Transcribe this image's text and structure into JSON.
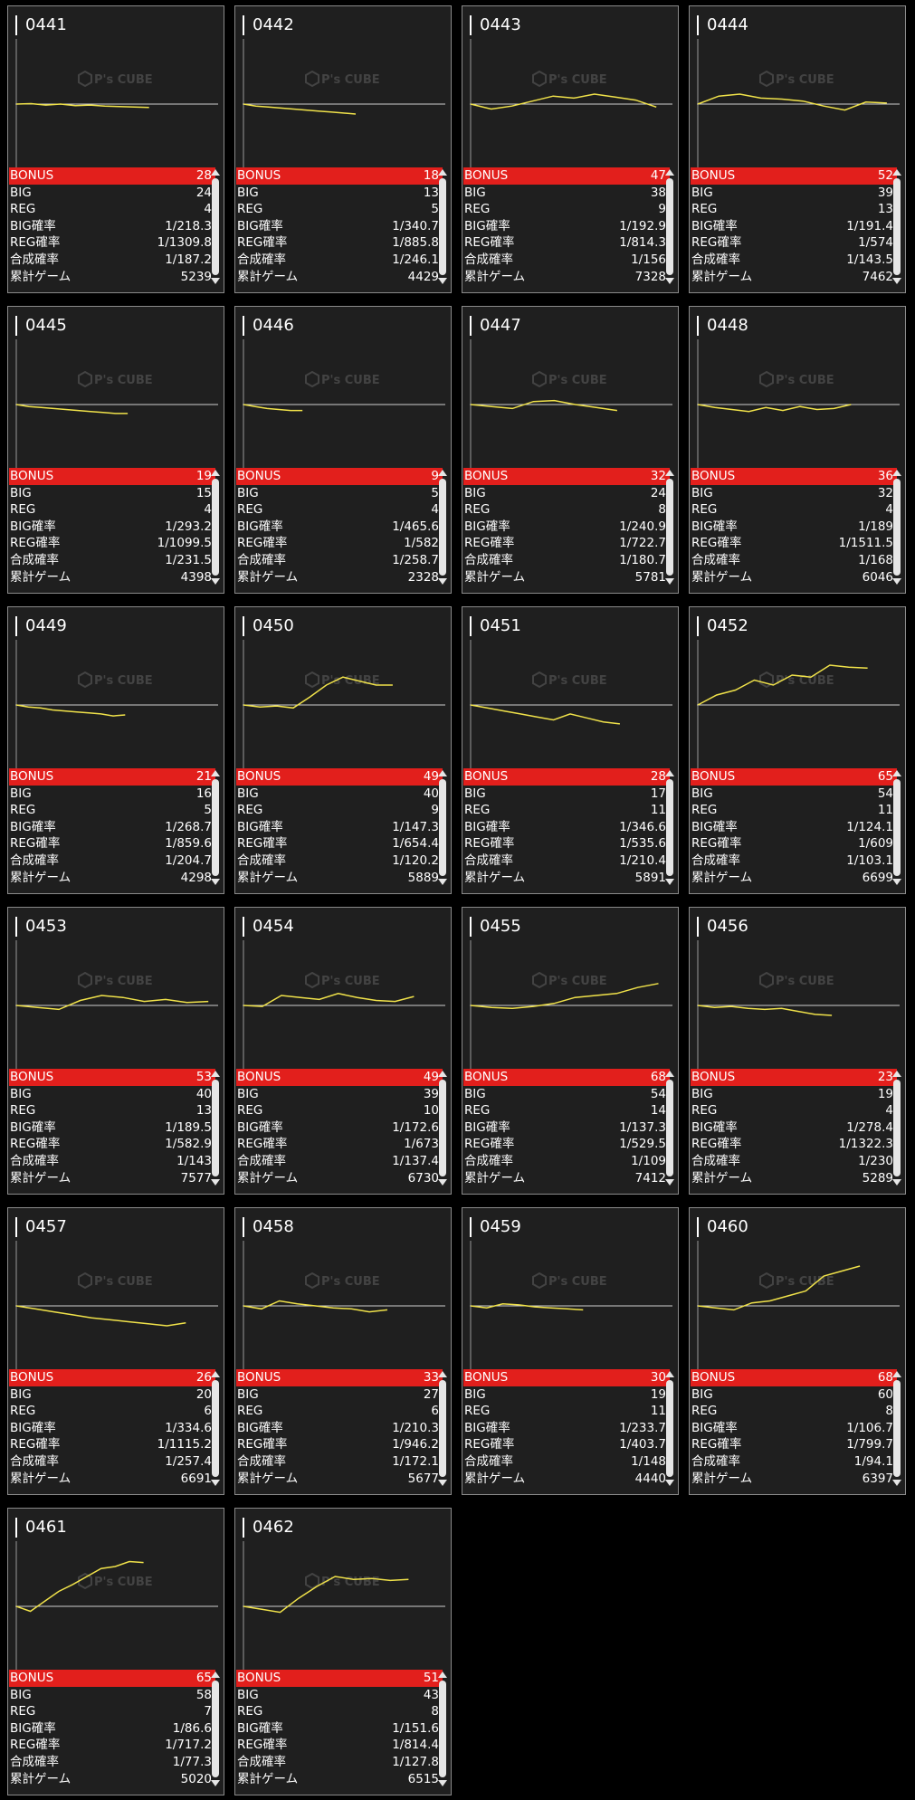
{
  "watermark": {
    "text": "P's CUBE"
  },
  "colors": {
    "bonus_bg": "#e21f1c",
    "graph_line": "#f0e24a",
    "baseline": "#cfcfcf",
    "card_bg": "#1f1f1f"
  },
  "labels": {
    "bonus": "BONUS",
    "big": "BIG",
    "reg": "REG",
    "big_rate": "BIG確率",
    "reg_rate": "REG確率",
    "combined_rate": "合成確率",
    "total_games": "累計ゲーム"
  },
  "machines": [
    {
      "id": "0441",
      "bonus": "28",
      "big": "24",
      "reg": "4",
      "big_rate": "1/218.3",
      "reg_rate": "1/1309.8",
      "combined_rate": "1/187.2",
      "total_games": "5239",
      "graph": [
        0,
        0.5,
        -1,
        0,
        -1.5,
        -1,
        -2,
        -2.5,
        -3,
        -3.5
      ]
    },
    {
      "id": "0442",
      "bonus": "18",
      "big": "13",
      "reg": "5",
      "big_rate": "1/340.7",
      "reg_rate": "1/885.8",
      "combined_rate": "1/246.1",
      "total_games": "4429",
      "graph": [
        0,
        -2,
        -3,
        -4,
        -5,
        -6,
        -7,
        -8,
        -9,
        -10
      ]
    },
    {
      "id": "0443",
      "bonus": "47",
      "big": "38",
      "reg": "9",
      "big_rate": "1/192.9",
      "reg_rate": "1/814.3",
      "combined_rate": "1/156",
      "total_games": "7328",
      "graph": [
        0,
        -5,
        -2,
        3,
        8,
        6,
        10,
        7,
        4,
        -3
      ]
    },
    {
      "id": "0444",
      "bonus": "52",
      "big": "39",
      "reg": "13",
      "big_rate": "1/191.4",
      "reg_rate": "1/574",
      "combined_rate": "1/143.5",
      "total_games": "7462",
      "graph": [
        0,
        8,
        10,
        6,
        5,
        3,
        -2,
        -6,
        2,
        1
      ]
    },
    {
      "id": "0445",
      "bonus": "19",
      "big": "15",
      "reg": "4",
      "big_rate": "1/293.2",
      "reg_rate": "1/1099.5",
      "combined_rate": "1/231.5",
      "total_games": "4398",
      "graph": [
        0,
        -2,
        -3,
        -4,
        -5,
        -6,
        -7,
        -8,
        -9,
        -9
      ]
    },
    {
      "id": "0446",
      "bonus": "9",
      "big": "5",
      "reg": "4",
      "big_rate": "1/465.6",
      "reg_rate": "1/582",
      "combined_rate": "1/258.7",
      "total_games": "2328",
      "graph": [
        0,
        -2,
        -4,
        -5,
        -6,
        -6
      ]
    },
    {
      "id": "0447",
      "bonus": "32",
      "big": "24",
      "reg": "8",
      "big_rate": "1/240.9",
      "reg_rate": "1/722.7",
      "combined_rate": "1/180.7",
      "total_games": "5781",
      "graph": [
        0,
        -2,
        -4,
        3,
        4,
        0,
        -3,
        -6
      ]
    },
    {
      "id": "0448",
      "bonus": "36",
      "big": "32",
      "reg": "4",
      "big_rate": "1/189",
      "reg_rate": "1/1511.5",
      "combined_rate": "1/168",
      "total_games": "6046",
      "graph": [
        0,
        -3,
        -5,
        -7,
        -3,
        -6,
        -2,
        -5,
        -4,
        0
      ]
    },
    {
      "id": "0449",
      "bonus": "21",
      "big": "16",
      "reg": "5",
      "big_rate": "1/268.7",
      "reg_rate": "1/859.6",
      "combined_rate": "1/204.7",
      "total_games": "4298",
      "graph": [
        0,
        -2,
        -3,
        -5,
        -6,
        -7,
        -8,
        -9,
        -11,
        -10
      ]
    },
    {
      "id": "0450",
      "bonus": "49",
      "big": "40",
      "reg": "9",
      "big_rate": "1/147.3",
      "reg_rate": "1/654.4",
      "combined_rate": "1/120.2",
      "total_games": "5889",
      "graph": [
        0,
        -2,
        -1,
        -3,
        8,
        20,
        28,
        24,
        20,
        20
      ]
    },
    {
      "id": "0451",
      "bonus": "28",
      "big": "17",
      "reg": "11",
      "big_rate": "1/346.6",
      "reg_rate": "1/535.6",
      "combined_rate": "1/210.4",
      "total_games": "5891",
      "graph": [
        0,
        -3,
        -6,
        -9,
        -12,
        -15,
        -9,
        -13,
        -17,
        -19
      ]
    },
    {
      "id": "0452",
      "bonus": "65",
      "big": "54",
      "reg": "11",
      "big_rate": "1/124.1",
      "reg_rate": "1/609",
      "combined_rate": "1/103.1",
      "total_games": "6699",
      "graph": [
        0,
        10,
        15,
        25,
        20,
        30,
        28,
        40,
        38,
        37
      ]
    },
    {
      "id": "0453",
      "bonus": "53",
      "big": "40",
      "reg": "13",
      "big_rate": "1/189.5",
      "reg_rate": "1/582.9",
      "combined_rate": "1/143",
      "total_games": "7577",
      "graph": [
        0,
        -2,
        -4,
        5,
        10,
        8,
        4,
        6,
        3,
        4
      ]
    },
    {
      "id": "0454",
      "bonus": "49",
      "big": "39",
      "reg": "10",
      "big_rate": "1/172.6",
      "reg_rate": "1/673",
      "combined_rate": "1/137.4",
      "total_games": "6730",
      "graph": [
        0,
        -1,
        10,
        8,
        6,
        12,
        8,
        5,
        4,
        9
      ]
    },
    {
      "id": "0455",
      "bonus": "68",
      "big": "54",
      "reg": "14",
      "big_rate": "1/137.3",
      "reg_rate": "1/529.5",
      "combined_rate": "1/109",
      "total_games": "7412",
      "graph": [
        0,
        -2,
        -3,
        -1,
        2,
        8,
        10,
        12,
        18,
        22
      ]
    },
    {
      "id": "0456",
      "bonus": "23",
      "big": "19",
      "reg": "4",
      "big_rate": "1/278.4",
      "reg_rate": "1/1322.3",
      "combined_rate": "1/230",
      "total_games": "5289",
      "graph": [
        0,
        -2,
        -1,
        -3,
        -4,
        -3,
        -6,
        -9,
        -10
      ]
    },
    {
      "id": "0457",
      "bonus": "26",
      "big": "20",
      "reg": "6",
      "big_rate": "1/334.6",
      "reg_rate": "1/1115.2",
      "combined_rate": "1/257.4",
      "total_games": "6691",
      "graph": [
        0,
        -3,
        -6,
        -9,
        -12,
        -14,
        -16,
        -18,
        -20,
        -17
      ]
    },
    {
      "id": "0458",
      "bonus": "33",
      "big": "27",
      "reg": "6",
      "big_rate": "1/210.3",
      "reg_rate": "1/946.2",
      "combined_rate": "1/172.1",
      "total_games": "5677",
      "graph": [
        0,
        -3,
        5,
        2,
        0,
        -2,
        -3,
        -6,
        -4
      ]
    },
    {
      "id": "0459",
      "bonus": "30",
      "big": "19",
      "reg": "11",
      "big_rate": "1/233.7",
      "reg_rate": "1/403.7",
      "combined_rate": "1/148",
      "total_games": "4440",
      "graph": [
        0,
        -2,
        2,
        1,
        -1,
        -2,
        -3,
        -4
      ]
    },
    {
      "id": "0460",
      "bonus": "68",
      "big": "60",
      "reg": "8",
      "big_rate": "1/106.7",
      "reg_rate": "1/799.7",
      "combined_rate": "1/94.1",
      "total_games": "6397",
      "graph": [
        0,
        -2,
        -4,
        3,
        5,
        10,
        15,
        30,
        35,
        40
      ]
    },
    {
      "id": "0461",
      "bonus": "65",
      "big": "58",
      "reg": "7",
      "big_rate": "1/86.6",
      "reg_rate": "1/717.2",
      "combined_rate": "1/77.3",
      "total_games": "5020",
      "graph": [
        0,
        -5,
        5,
        15,
        22,
        30,
        38,
        40,
        45,
        44
      ]
    },
    {
      "id": "0462",
      "bonus": "51",
      "big": "43",
      "reg": "8",
      "big_rate": "1/151.6",
      "reg_rate": "1/814.4",
      "combined_rate": "1/127.8",
      "total_games": "6515",
      "graph": [
        0,
        -3,
        -6,
        8,
        20,
        30,
        27,
        28,
        26,
        27
      ]
    }
  ]
}
